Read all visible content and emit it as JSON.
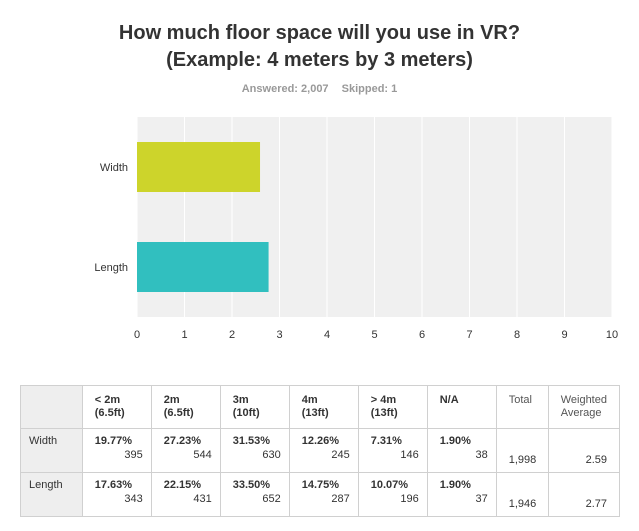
{
  "question": {
    "line1": "How much floor space will you use in VR?",
    "line2": "(Example: 4 meters by 3 meters)"
  },
  "stats": {
    "answered": "Answered: 2,007",
    "skipped": "Skipped: 1"
  },
  "colors": {
    "width_bar": "#cdd42b",
    "length_bar": "#31bfbf",
    "plot_bg": "#f0f0f0",
    "grid": "#ffffff"
  },
  "chart_data": {
    "type": "bar",
    "orientation": "horizontal",
    "categories": [
      "Width",
      "Length"
    ],
    "values": [
      2.59,
      2.77
    ],
    "xlim": [
      0,
      10
    ],
    "xticks": [
      0,
      1,
      2,
      3,
      4,
      5,
      6,
      7,
      8,
      9,
      10
    ],
    "grid": true
  },
  "table": {
    "headers": [
      {
        "line1": "< 2m",
        "line2": "(6.5ft)"
      },
      {
        "line1": "2m",
        "line2": "(6.5ft)"
      },
      {
        "line1": "3m",
        "line2": "(10ft)"
      },
      {
        "line1": "4m",
        "line2": "(13ft)"
      },
      {
        "line1": "> 4m",
        "line2": "(13ft)"
      },
      {
        "line1": "N/A",
        "line2": ""
      }
    ],
    "total_header": "Total",
    "avg_header": {
      "line1": "Weighted",
      "line2": "Average"
    },
    "rows": [
      {
        "label": "Width",
        "cells": [
          {
            "pct": "19.77%",
            "count": "395"
          },
          {
            "pct": "27.23%",
            "count": "544"
          },
          {
            "pct": "31.53%",
            "count": "630"
          },
          {
            "pct": "12.26%",
            "count": "245"
          },
          {
            "pct": "7.31%",
            "count": "146"
          },
          {
            "pct": "1.90%",
            "count": "38"
          }
        ],
        "total": "1,998",
        "avg": "2.59"
      },
      {
        "label": "Length",
        "cells": [
          {
            "pct": "17.63%",
            "count": "343"
          },
          {
            "pct": "22.15%",
            "count": "431"
          },
          {
            "pct": "33.50%",
            "count": "652"
          },
          {
            "pct": "14.75%",
            "count": "287"
          },
          {
            "pct": "10.07%",
            "count": "196"
          },
          {
            "pct": "1.90%",
            "count": "37"
          }
        ],
        "total": "1,946",
        "avg": "2.77"
      }
    ]
  }
}
